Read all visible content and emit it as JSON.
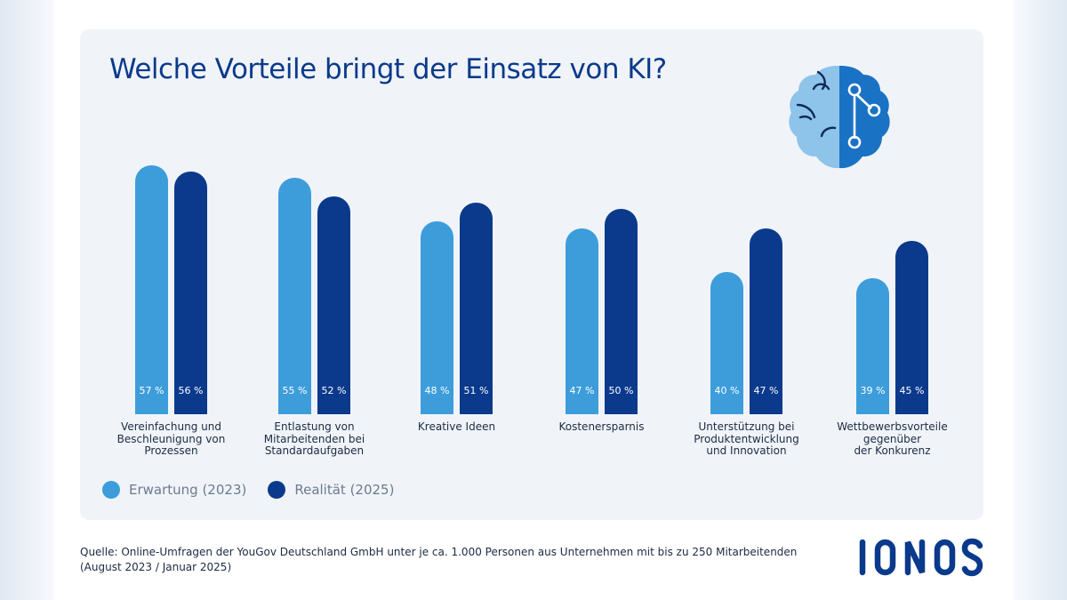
{
  "colors": {
    "expectation": "#3d9ddb",
    "reality": "#0b3a8c",
    "title": "#0b3a8c",
    "panel": "#f0f4f8"
  },
  "icon": "brain-circuit-icon",
  "chart_data": {
    "type": "bar",
    "title": "Welche Vorteile bringt der Einsatz von KI?",
    "categories": [
      "Vereinfachung und\nBeschleunigung von\nProzessen",
      "Entlastung von\nMitarbeitenden bei\nStandardaufgaben",
      "Kreative Ideen",
      "Kostenersparnis",
      "Unterstützung bei\nProduktentwicklung\nund Innovation",
      "Wettbewerbsvorteile\ngegenüber\nder Konkurenz"
    ],
    "series": [
      {
        "name": "Erwartung (2023)",
        "values": [
          57,
          55,
          48,
          47,
          40,
          39
        ],
        "labels": [
          "57 %",
          "55 %",
          "48 %",
          "47 %",
          "40 %",
          "39 %"
        ]
      },
      {
        "name": "Realität (2025)",
        "values": [
          56,
          52,
          51,
          50,
          47,
          45
        ],
        "labels": [
          "56 %",
          "52 %",
          "51 %",
          "50 %",
          "47 %",
          "45 %"
        ]
      }
    ],
    "unit": "%",
    "legend": "bottom-left",
    "grid": false
  },
  "source": {
    "line1": "Quelle: Online-Umfragen der YouGov Deutschland GmbH unter je ca. 1.000 Personen aus Unternehmen mit bis zu 250 Mitarbeitenden",
    "line2": "(August 2023 / Januar 2025)"
  },
  "logo": "IONOS"
}
